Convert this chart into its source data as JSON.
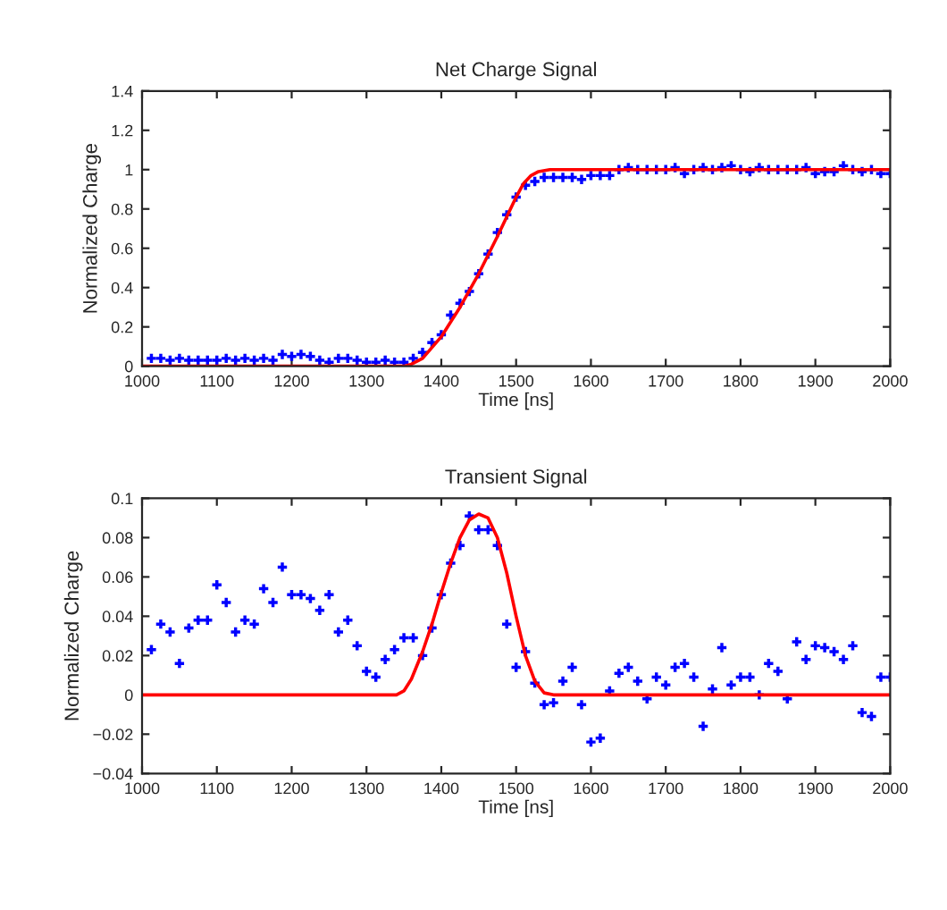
{
  "chart_data": [
    {
      "type": "scatter",
      "title": "Net Charge Signal",
      "xlabel": "Time [ns]",
      "ylabel": "Normalized Charge",
      "xlim": [
        1000,
        2000
      ],
      "xticks": [
        1000,
        1100,
        1200,
        1300,
        1400,
        1500,
        1600,
        1700,
        1800,
        1900,
        2000
      ],
      "ylim": [
        0,
        1.4
      ],
      "yticks": [
        0,
        0.2,
        0.4,
        0.6,
        0.8,
        1,
        1.2,
        1.4
      ],
      "series": [
        {
          "marker": "cross",
          "color": "#0000ff",
          "x": [
            1012.5,
            1025,
            1037.5,
            1050,
            1062.5,
            1075,
            1087.5,
            1100,
            1112.5,
            1125,
            1137.5,
            1150,
            1162.5,
            1175,
            1187.5,
            1200,
            1212.5,
            1225,
            1237.5,
            1250,
            1262.5,
            1275,
            1287.5,
            1300,
            1312.5,
            1325,
            1337.5,
            1350,
            1362.5,
            1375,
            1387.5,
            1400,
            1412.5,
            1425,
            1437.5,
            1450,
            1462.5,
            1475,
            1487.5,
            1500,
            1512.5,
            1525,
            1537.5,
            1550,
            1562.5,
            1575,
            1587.5,
            1600,
            1612.5,
            1625,
            1637.5,
            1650,
            1662.5,
            1675,
            1687.5,
            1700,
            1712.5,
            1725,
            1737.5,
            1750,
            1762.5,
            1775,
            1787.5,
            1800,
            1812.5,
            1825,
            1837.5,
            1850,
            1862.5,
            1875,
            1887.5,
            1900,
            1912.5,
            1925,
            1937.5,
            1950,
            1962.5,
            1975,
            1987.5,
            2000
          ],
          "values": [
            0.04,
            0.04,
            0.03,
            0.04,
            0.03,
            0.03,
            0.03,
            0.03,
            0.04,
            0.03,
            0.04,
            0.03,
            0.04,
            0.03,
            0.06,
            0.05,
            0.06,
            0.05,
            0.03,
            0.02,
            0.04,
            0.04,
            0.03,
            0.02,
            0.02,
            0.03,
            0.02,
            0.02,
            0.04,
            0.07,
            0.12,
            0.16,
            0.26,
            0.32,
            0.38,
            0.47,
            0.57,
            0.68,
            0.77,
            0.86,
            0.92,
            0.94,
            0.96,
            0.96,
            0.96,
            0.96,
            0.95,
            0.97,
            0.97,
            0.97,
            1.0,
            1.01,
            1.0,
            1.0,
            1.0,
            1.0,
            1.01,
            0.98,
            1.0,
            1.01,
            1.0,
            1.01,
            1.02,
            1.0,
            0.99,
            1.01,
            1.0,
            1.0,
            1.0,
            1.0,
            1.01,
            0.98,
            0.99,
            0.99,
            1.02,
            1.0,
            0.99,
            1.0,
            0.98,
            0.98
          ]
        },
        {
          "type": "line",
          "marker": "none",
          "color": "#ff0000",
          "x": [
            1000,
            1350,
            1360,
            1375,
            1400,
            1425,
            1450,
            1475,
            1500,
            1510,
            1520,
            1530,
            1545,
            2000
          ],
          "values": [
            0,
            0,
            0.01,
            0.04,
            0.15,
            0.3,
            0.47,
            0.66,
            0.86,
            0.93,
            0.97,
            0.99,
            1,
            1
          ]
        }
      ]
    },
    {
      "type": "scatter",
      "title": "Transient Signal",
      "xlabel": "Time [ns]",
      "ylabel": "Normalized Charge",
      "xlim": [
        1000,
        2000
      ],
      "xticks": [
        1000,
        1100,
        1200,
        1300,
        1400,
        1500,
        1600,
        1700,
        1800,
        1900,
        2000
      ],
      "ylim": [
        -0.04,
        0.1
      ],
      "yticks": [
        {
          "value": -0.04,
          "label": "−0.04"
        },
        {
          "value": -0.02,
          "label": "−0.02"
        },
        0,
        0.02,
        0.04,
        0.06,
        0.08,
        0.1
      ],
      "series": [
        {
          "marker": "cross",
          "color": "#0000ff",
          "x": [
            1012.5,
            1025,
            1037.5,
            1050,
            1062.5,
            1075,
            1087.5,
            1100,
            1112.5,
            1125,
            1137.5,
            1150,
            1162.5,
            1175,
            1187.5,
            1200,
            1212.5,
            1225,
            1237.5,
            1250,
            1262.5,
            1275,
            1287.5,
            1300,
            1312.5,
            1325,
            1337.5,
            1350,
            1362.5,
            1375,
            1387.5,
            1400,
            1412.5,
            1425,
            1437.5,
            1450,
            1462.5,
            1475,
            1487.5,
            1500,
            1512.5,
            1525,
            1537.5,
            1550,
            1562.5,
            1575,
            1587.5,
            1600,
            1612.5,
            1625,
            1637.5,
            1650,
            1662.5,
            1675,
            1687.5,
            1700,
            1712.5,
            1725,
            1737.5,
            1750,
            1762.5,
            1775,
            1787.5,
            1800,
            1812.5,
            1825,
            1837.5,
            1850,
            1862.5,
            1875,
            1887.5,
            1900,
            1912.5,
            1925,
            1937.5,
            1950,
            1962.5,
            1975,
            1987.5,
            2000
          ],
          "values": [
            0.023,
            0.036,
            0.032,
            0.016,
            0.034,
            0.038,
            0.038,
            0.056,
            0.047,
            0.032,
            0.038,
            0.036,
            0.054,
            0.047,
            0.065,
            0.051,
            0.051,
            0.049,
            0.043,
            0.051,
            0.032,
            0.038,
            0.025,
            0.012,
            0.009,
            0.018,
            0.023,
            0.029,
            0.029,
            0.02,
            0.034,
            0.051,
            0.067,
            0.076,
            0.091,
            0.084,
            0.084,
            0.076,
            0.036,
            0.014,
            0.022,
            0.006,
            -0.005,
            -0.004,
            0.007,
            0.014,
            -0.005,
            -0.024,
            -0.022,
            0.002,
            0.011,
            0.014,
            0.007,
            -0.002,
            0.009,
            0.005,
            0.014,
            0.016,
            0.009,
            -0.016,
            0.003,
            0.024,
            0.005,
            0.009,
            0.009,
            0.0,
            0.016,
            0.012,
            -0.002,
            0.027,
            0.018,
            0.025,
            0.024,
            0.022,
            0.018,
            0.025,
            -0.009,
            -0.011,
            0.009,
            0.009
          ]
        },
        {
          "type": "line",
          "marker": "none",
          "color": "#ff0000",
          "x": [
            1000,
            1340,
            1350,
            1360,
            1375,
            1387.5,
            1400,
            1412.5,
            1425,
            1437.5,
            1450,
            1462.5,
            1475,
            1487.5,
            1500,
            1512.5,
            1525,
            1537.5,
            1550,
            2000
          ],
          "values": [
            0,
            0,
            0.002,
            0.008,
            0.022,
            0.036,
            0.052,
            0.067,
            0.08,
            0.089,
            0.092,
            0.09,
            0.08,
            0.062,
            0.04,
            0.02,
            0.007,
            0.001,
            0,
            0
          ]
        }
      ]
    }
  ]
}
